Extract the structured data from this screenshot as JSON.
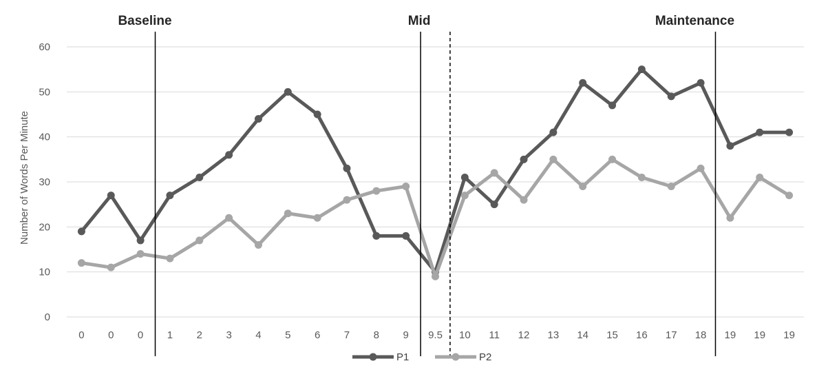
{
  "chart_data": {
    "type": "line",
    "title": "",
    "xlabel": "",
    "ylabel": "Number of Words Per Minute",
    "ylim": [
      0,
      60
    ],
    "y_ticks": [
      "0",
      "10",
      "20",
      "30",
      "40",
      "50",
      "60"
    ],
    "grid": "horizontal",
    "legend_position": "bottom",
    "categories": [
      "0",
      "0",
      "0",
      "1",
      "2",
      "3",
      "4",
      "5",
      "6",
      "7",
      "8",
      "9",
      "9.5",
      "10",
      "11",
      "12",
      "13",
      "14",
      "15",
      "16",
      "17",
      "18",
      "19",
      "19",
      "19"
    ],
    "series": [
      {
        "name": "P1",
        "color": "#595959",
        "values": [
          19,
          27,
          17,
          27,
          31,
          36,
          44,
          50,
          45,
          33,
          18,
          18,
          10,
          31,
          25,
          35,
          41,
          52,
          47,
          55,
          49,
          52,
          38,
          41,
          41
        ]
      },
      {
        "name": "P2",
        "color": "#a6a6a6",
        "values": [
          12,
          11,
          14,
          13,
          17,
          22,
          16,
          23,
          22,
          26,
          28,
          29,
          9,
          27,
          32,
          26,
          35,
          29,
          35,
          31,
          29,
          33,
          22,
          31,
          27
        ]
      }
    ],
    "phases": [
      {
        "label": "Baseline",
        "line_after": 2,
        "style": "solid"
      },
      {
        "label": "Mid",
        "line_after": 11,
        "style": "solid"
      },
      {
        "label": "",
        "line_after": 12,
        "style": "dashed"
      },
      {
        "label": "Maintenance",
        "line_after": 21,
        "style": "solid"
      }
    ],
    "colors": {
      "grid": "#d9d9d9",
      "phase_line": "#000000",
      "p1": "#595959",
      "p2": "#a6a6a6"
    }
  }
}
